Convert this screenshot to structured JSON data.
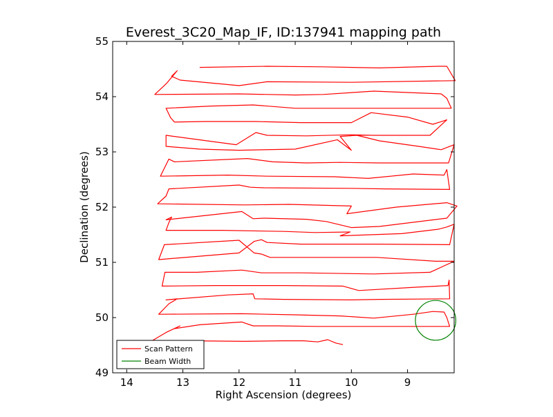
{
  "chart_data": {
    "type": "line",
    "title": "Everest_3C20_Map_IF, ID:137941 mapping path",
    "xlabel": "Right Ascension (degrees)",
    "ylabel": "Declination (degrees)",
    "xlim": [
      14.25,
      8.17
    ],
    "ylim": [
      49,
      55
    ],
    "x_inverted": true,
    "xticks": [
      14,
      13,
      12,
      11,
      10,
      9
    ],
    "yticks": [
      49,
      50,
      51,
      52,
      53,
      54,
      55
    ],
    "grid": false,
    "legend_placement": "lower-left",
    "series": [
      {
        "name": "Scan Pattern",
        "color": "#ff0000",
        "points": [
          [
            10.15,
            49.51
          ],
          [
            10.28,
            49.54
          ],
          [
            10.42,
            49.6
          ],
          [
            10.6,
            49.56
          ],
          [
            10.85,
            49.58
          ],
          [
            11.2,
            49.58
          ],
          [
            11.9,
            49.57
          ],
          [
            12.9,
            49.58
          ],
          [
            13.55,
            49.58
          ],
          [
            13.3,
            49.73
          ],
          [
            13.05,
            49.85
          ],
          [
            13.15,
            49.8
          ],
          [
            12.7,
            49.87
          ],
          [
            11.95,
            49.92
          ],
          [
            11.75,
            49.85
          ],
          [
            11.3,
            49.85
          ],
          [
            10.6,
            49.84
          ],
          [
            9.9,
            49.84
          ],
          [
            8.25,
            49.84
          ],
          [
            8.3,
            50.0
          ],
          [
            8.35,
            50.1
          ],
          [
            8.55,
            50.11
          ],
          [
            8.9,
            50.06
          ],
          [
            9.6,
            49.99
          ],
          [
            10.2,
            50.03
          ],
          [
            11.0,
            50.05
          ],
          [
            11.95,
            50.07
          ],
          [
            13.43,
            50.06
          ],
          [
            13.25,
            50.25
          ],
          [
            13.1,
            50.34
          ],
          [
            13.3,
            50.32
          ],
          [
            12.2,
            50.41
          ],
          [
            11.75,
            50.43
          ],
          [
            11.72,
            50.34
          ],
          [
            11.2,
            50.33
          ],
          [
            10.0,
            50.32
          ],
          [
            9.5,
            50.33
          ],
          [
            8.25,
            50.34
          ],
          [
            8.26,
            50.68
          ],
          [
            8.28,
            50.58
          ],
          [
            8.85,
            50.55
          ],
          [
            9.87,
            50.49
          ],
          [
            10.15,
            50.57
          ],
          [
            11.2,
            50.58
          ],
          [
            12.45,
            50.58
          ],
          [
            13.37,
            50.57
          ],
          [
            13.32,
            50.82
          ],
          [
            12.75,
            50.82
          ],
          [
            11.95,
            50.86
          ],
          [
            11.6,
            50.81
          ],
          [
            10.9,
            50.81
          ],
          [
            9.6,
            50.79
          ],
          [
            8.6,
            50.82
          ],
          [
            8.17,
            51.02
          ],
          [
            8.5,
            51.02
          ],
          [
            9.55,
            51.09
          ],
          [
            11.45,
            51.09
          ],
          [
            11.6,
            51.15
          ],
          [
            11.73,
            51.17
          ],
          [
            12.0,
            51.4
          ],
          [
            13.33,
            51.32
          ],
          [
            13.43,
            51.05
          ],
          [
            12.0,
            51.17
          ],
          [
            11.73,
            51.38
          ],
          [
            11.6,
            51.41
          ],
          [
            11.5,
            51.36
          ],
          [
            10.9,
            51.33
          ],
          [
            9.5,
            51.33
          ],
          [
            8.25,
            51.32
          ],
          [
            8.17,
            51.69
          ],
          [
            8.3,
            51.64
          ],
          [
            8.45,
            51.6
          ],
          [
            9.1,
            51.52
          ],
          [
            10.2,
            51.48
          ],
          [
            10.02,
            51.55
          ],
          [
            10.65,
            51.54
          ],
          [
            11.2,
            51.56
          ],
          [
            12.3,
            51.58
          ],
          [
            13.3,
            51.58
          ],
          [
            13.25,
            51.72
          ],
          [
            13.2,
            51.82
          ],
          [
            13.3,
            51.77
          ],
          [
            11.95,
            51.92
          ],
          [
            11.75,
            51.79
          ],
          [
            11.55,
            51.8
          ],
          [
            10.8,
            51.78
          ],
          [
            10.45,
            51.74
          ],
          [
            10.0,
            51.63
          ],
          [
            9.5,
            51.65
          ],
          [
            8.3,
            51.8
          ],
          [
            8.12,
            52.02
          ],
          [
            8.3,
            52.08
          ],
          [
            9.2,
            52.0
          ],
          [
            10.08,
            51.88
          ],
          [
            10.0,
            52.02
          ],
          [
            11.1,
            52.05
          ],
          [
            11.9,
            52.04
          ],
          [
            13.45,
            52.06
          ],
          [
            13.3,
            52.2
          ],
          [
            13.25,
            52.33
          ],
          [
            12.0,
            52.4
          ],
          [
            11.8,
            52.36
          ],
          [
            11.55,
            52.35
          ],
          [
            10.0,
            52.34
          ],
          [
            9.4,
            52.33
          ],
          [
            8.25,
            52.32
          ],
          [
            8.3,
            52.68
          ],
          [
            8.35,
            52.58
          ],
          [
            8.9,
            52.6
          ],
          [
            9.7,
            52.52
          ],
          [
            10.3,
            52.55
          ],
          [
            11.5,
            52.56
          ],
          [
            12.2,
            52.58
          ],
          [
            13.4,
            52.56
          ],
          [
            13.25,
            52.87
          ],
          [
            13.15,
            52.82
          ],
          [
            11.85,
            52.88
          ],
          [
            11.4,
            52.82
          ],
          [
            10.8,
            52.8
          ],
          [
            10.2,
            52.81
          ],
          [
            9.5,
            52.8
          ],
          [
            8.27,
            52.8
          ],
          [
            8.17,
            53.13
          ],
          [
            8.4,
            53.04
          ],
          [
            8.8,
            53.1
          ],
          [
            9.5,
            53.2
          ],
          [
            9.9,
            53.3
          ],
          [
            10.2,
            53.28
          ],
          [
            10.0,
            53.03
          ],
          [
            10.25,
            53.22
          ],
          [
            11.0,
            53.05
          ],
          [
            12.0,
            53.03
          ],
          [
            12.7,
            53.05
          ],
          [
            13.3,
            53.1
          ],
          [
            13.3,
            53.3
          ],
          [
            12.05,
            53.13
          ],
          [
            11.7,
            53.35
          ],
          [
            11.5,
            53.3
          ],
          [
            10.8,
            53.29
          ],
          [
            10.0,
            53.31
          ],
          [
            9.6,
            53.3
          ],
          [
            8.6,
            53.3
          ],
          [
            8.3,
            53.58
          ],
          [
            8.55,
            53.5
          ],
          [
            9.0,
            53.63
          ],
          [
            9.65,
            53.71
          ],
          [
            10.0,
            53.53
          ],
          [
            10.9,
            53.53
          ],
          [
            11.7,
            53.55
          ],
          [
            12.6,
            53.55
          ],
          [
            13.15,
            53.54
          ],
          [
            13.22,
            53.62
          ],
          [
            13.3,
            53.79
          ],
          [
            12.5,
            53.83
          ],
          [
            11.75,
            53.85
          ],
          [
            11.0,
            53.79
          ],
          [
            10.0,
            53.79
          ],
          [
            8.22,
            53.79
          ],
          [
            8.3,
            53.97
          ],
          [
            8.4,
            54.05
          ],
          [
            9.6,
            54.1
          ],
          [
            10.5,
            54.04
          ],
          [
            11.0,
            54.03
          ],
          [
            12.0,
            54.05
          ],
          [
            13.5,
            54.04
          ],
          [
            13.3,
            54.23
          ],
          [
            13.1,
            54.47
          ],
          [
            13.2,
            54.37
          ],
          [
            13.05,
            54.3
          ],
          [
            12.0,
            54.2
          ],
          [
            11.5,
            54.27
          ],
          [
            10.0,
            54.26
          ],
          [
            8.15,
            54.29
          ],
          [
            8.3,
            54.55
          ],
          [
            8.45,
            54.55
          ],
          [
            9.5,
            54.52
          ],
          [
            10.5,
            54.54
          ],
          [
            11.5,
            54.55
          ],
          [
            12.7,
            54.53
          ]
        ]
      },
      {
        "name": "Beam Width",
        "color": "#008000",
        "shape": "circle",
        "center": [
          8.5,
          49.95
        ],
        "radius": 0.36
      }
    ]
  }
}
